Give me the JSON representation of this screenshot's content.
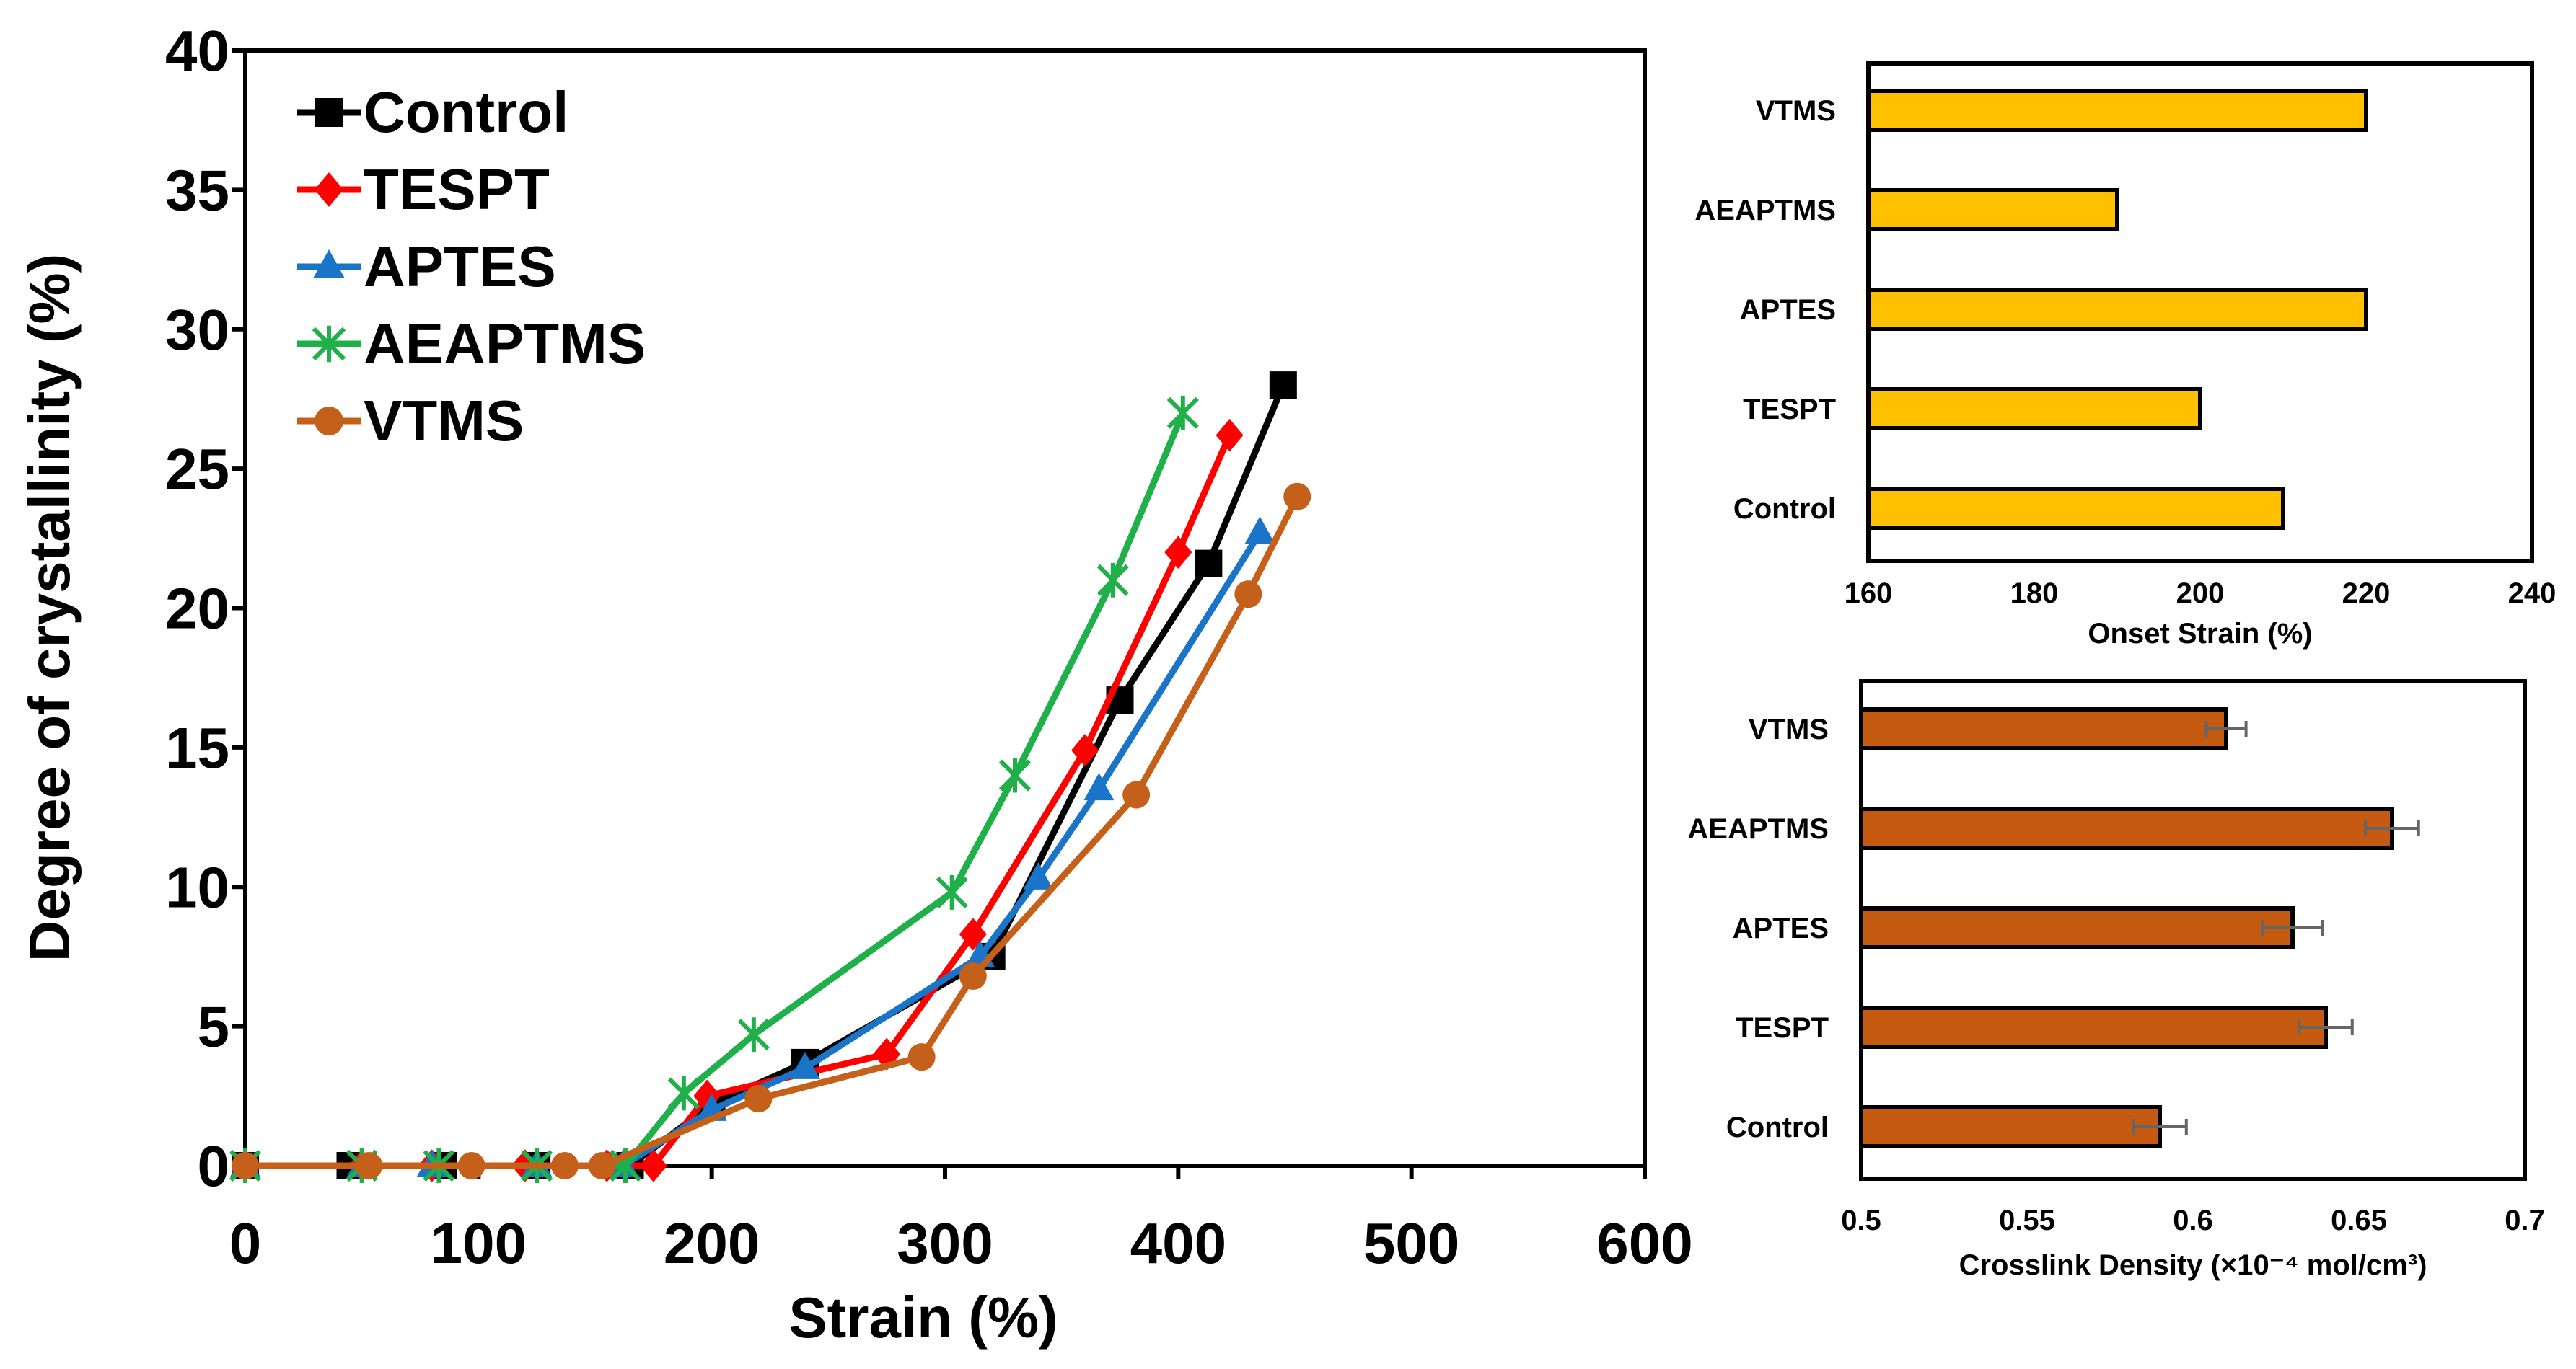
{
  "chart_data": [
    {
      "type": "line",
      "title": "",
      "xlabel": "Strain (%)",
      "ylabel": "Degree of crystallinity (%)",
      "xlim": [
        0,
        600
      ],
      "ylim": [
        0,
        40
      ],
      "xticks": [
        "0",
        "100",
        "200",
        "300",
        "400",
        "500",
        "600"
      ],
      "yticks": [
        "0",
        "5",
        "10",
        "15",
        "20",
        "25",
        "30",
        "35",
        "40"
      ],
      "legend_position": "top-left",
      "series": [
        {
          "name": "Control",
          "color": "#000000",
          "marker": "square",
          "x": [
            0,
            45,
            85,
            125,
            165,
            200,
            240,
            320,
            375,
            413,
            445
          ],
          "y": [
            0,
            0,
            0,
            0,
            0,
            2.2,
            3.7,
            7.5,
            16.7,
            21.6,
            28.0
          ]
        },
        {
          "name": "TESPT",
          "color": "#ff0000",
          "marker": "diamond",
          "x": [
            0,
            50,
            80,
            120,
            155,
            175,
            198,
            275,
            312,
            360,
            400,
            422
          ],
          "y": [
            0,
            0,
            0,
            0,
            0,
            0,
            2.5,
            4.0,
            8.3,
            14.9,
            22.0,
            26.2
          ]
        },
        {
          "name": "APTES",
          "color": "#1a75c9",
          "marker": "triangle",
          "x": [
            0,
            50,
            80,
            125,
            162,
            200,
            240,
            315,
            340,
            366,
            435
          ],
          "y": [
            0,
            0,
            0,
            0,
            0,
            2.0,
            3.5,
            7.5,
            10.3,
            13.5,
            22.7
          ]
        },
        {
          "name": "AEAPTMS",
          "color": "#1fb04a",
          "marker": "asterisk",
          "x": [
            0,
            50,
            83,
            125,
            163,
            188,
            218,
            303,
            330,
            372,
            402
          ],
          "y": [
            0,
            0,
            0,
            0,
            0,
            2.6,
            4.7,
            9.8,
            14.0,
            21.0,
            27.0
          ]
        },
        {
          "name": "VTMS",
          "color": "#c5601a",
          "marker": "circle",
          "x": [
            0,
            53,
            97,
            137,
            153,
            220,
            290,
            312,
            382,
            430,
            451
          ],
          "y": [
            0,
            0,
            0,
            0,
            0,
            2.4,
            3.9,
            6.8,
            13.3,
            20.5,
            24.0
          ]
        }
      ]
    },
    {
      "type": "bar",
      "orientation": "horizontal",
      "title": "",
      "xlabel": "Onset Strain (%)",
      "ylabel": "",
      "categories": [
        "Control",
        "TESPT",
        "APTES",
        "AEAPTMS",
        "VTMS"
      ],
      "values": [
        210,
        200,
        220,
        190,
        220
      ],
      "xlim": [
        160,
        240
      ],
      "xticks": [
        "160",
        "180",
        "200",
        "220",
        "240"
      ],
      "bar_color": "#ffc000"
    },
    {
      "type": "bar",
      "orientation": "horizontal",
      "title": "",
      "xlabel": "Crosslink Density (×10⁻⁴ mol/cm³)",
      "ylabel": "",
      "categories": [
        "Control",
        "TESPT",
        "APTES",
        "AEAPTMS",
        "VTMS"
      ],
      "values": [
        0.59,
        0.64,
        0.63,
        0.66,
        0.61
      ],
      "errors": [
        0.008,
        0.008,
        0.009,
        0.008,
        0.006
      ],
      "xlim": [
        0.5,
        0.7
      ],
      "xticks": [
        "0.5",
        "0.55",
        "0.6",
        "0.65",
        "0.7"
      ],
      "bar_color": "#c55a11"
    }
  ]
}
